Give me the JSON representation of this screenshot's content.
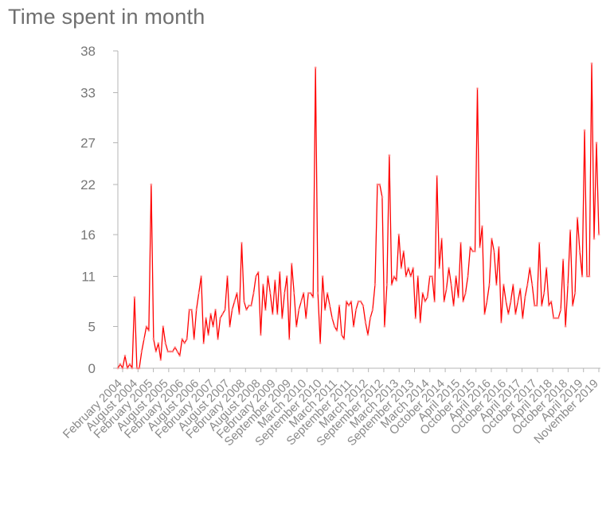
{
  "chart_data": {
    "type": "line",
    "title": "Time spent in month",
    "xlabel": "",
    "ylabel": "",
    "ylim": [
      0,
      38
    ],
    "yticks": [
      0,
      5,
      11,
      16,
      22,
      27,
      33,
      38
    ],
    "grid": false,
    "legend": "none",
    "line_color": "#ff0000",
    "x_tick_labels": [
      "February 2004",
      "August 2004",
      "February 2005",
      "August 2005",
      "February 2006",
      "August 2006",
      "February 2007",
      "August 2007",
      "February 2008",
      "August 2008",
      "February 2009",
      "September 2009",
      "March 2010",
      "September 2010",
      "March 2011",
      "September 2011",
      "March 2012",
      "September 2012",
      "March 2013",
      "September 2013",
      "March 2014",
      "October 2014",
      "April 2015",
      "October 2015",
      "April 2016",
      "October 2016",
      "April 2017",
      "October 2017",
      "April 2018",
      "October 2018",
      "April 2019",
      "November 2019"
    ],
    "series": [
      {
        "values": [
          0,
          0.5,
          0,
          1.5,
          0,
          0.5,
          0,
          8.5,
          0,
          0,
          2,
          3.5,
          5,
          4.5,
          22,
          3.5,
          2,
          3,
          1,
          5,
          3,
          2,
          2,
          2,
          2.5,
          2,
          1.5,
          3.5,
          3,
          3.5,
          7,
          7,
          3.5,
          7,
          9,
          11,
          3,
          6,
          4,
          6.5,
          5,
          7,
          3.5,
          6,
          6.5,
          7,
          11,
          5,
          7,
          8,
          9,
          6.5,
          15,
          8,
          7,
          7.5,
          7.5,
          9,
          11,
          11.5,
          4,
          10,
          7,
          11,
          9,
          6.5,
          10.5,
          6.5,
          11.5,
          6,
          9,
          11,
          3.5,
          12.5,
          9,
          5,
          7,
          8,
          9,
          6,
          9,
          9,
          8.5,
          36,
          9,
          3,
          11,
          7,
          9,
          7.5,
          6,
          5,
          4.5,
          7.5,
          4,
          3.5,
          8,
          7.5,
          8,
          5,
          7,
          8,
          8,
          7.5,
          5.5,
          4,
          6,
          7,
          10,
          22,
          22,
          20.5,
          5,
          10,
          25.5,
          10,
          11,
          10.5,
          16,
          12,
          14,
          11,
          12,
          11,
          12,
          6,
          11,
          5.5,
          9,
          8,
          8.5,
          11,
          11,
          8,
          23,
          12,
          15.5,
          8,
          9.5,
          12,
          10,
          7.5,
          11,
          8.5,
          15,
          8,
          9,
          11,
          14.5,
          14,
          14,
          33.5,
          14.5,
          17,
          6.5,
          8,
          10,
          15.5,
          14,
          10,
          14.5,
          5.5,
          10,
          8,
          6.5,
          8,
          10,
          6.5,
          8,
          9.5,
          6,
          8.5,
          10,
          12,
          10,
          7.5,
          7.5,
          15,
          7.5,
          9,
          12,
          7.5,
          8,
          6,
          6,
          6,
          7,
          13,
          5,
          10,
          16.5,
          7.5,
          9,
          18,
          14,
          11,
          28.5,
          11,
          11,
          36.5,
          15.5,
          27,
          16
        ]
      }
    ]
  }
}
